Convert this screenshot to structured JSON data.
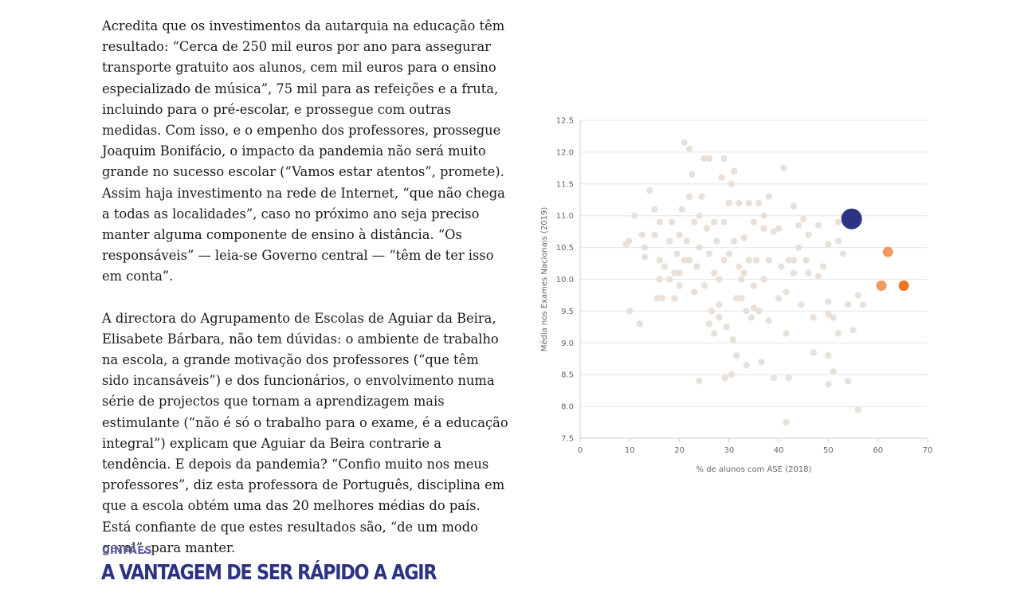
{
  "article": {
    "paragraphs": [
      "Acredita que os investimentos da autarquia na educação têm resultado: “Cerca de 250 mil euros por ano para assegurar transporte gratuito aos alunos, cem mil euros para o ensino especializado de música”, 75 mil para as refeições e a fruta, incluindo para o pré-escolar, e prossegue com outras medidas. Com isso, e o empenho dos professores, prossegue Joaquim Bonifácio, o impacto da pandemia não será muito grande no sucesso escolar (“Vamos estar atentos”, promete). Assim haja investimento na rede de Internet, “que não chega a todas as localidades”, caso no próximo ano seja preciso manter alguma componente de ensino à distância. “Os responsáveis” — leia-se Governo central — “têm de ter isso em conta”.",
      "A directora do Agrupamento de Escolas de Aguiar da Beira, Elisabete Bárbara, não tem dúvidas: o ambiente de trabalho na escola, a grande motivação dos professores (“que têm sido incansáveis”) e dos funcionários, o envolvimento numa série de projectos que tornam a aprendizagem mais estimulante (“não é só o trabalho para o exame, é a educação integral”) explicam que Aguiar da Beira contrarie a tendência. E depois da pandemia? “Confio muito nos meus professores”, diz esta professora de Português, disciplina em que a escola obtém uma das 20 melhores médias do país. Está confiante de que estes resultados são, “de um modo geral”, para manter."
    ]
  },
  "section": {
    "kicker": "CINFÃES",
    "headline": "A VANTAGEM DE SER RÁPIDO A AGIR"
  },
  "colors": {
    "background_points": "#e9e1d9",
    "highlight_large": "#2c3382",
    "highlight_light_orange": "#ef9a5c",
    "highlight_orange": "#e87722",
    "grid": "#e6e6e6",
    "axis_text": "#666666",
    "headline": "#2c3382",
    "kicker": "#5c5fa8"
  },
  "chart_data": {
    "type": "scatter",
    "xlabel": "% de alunos com ASE (2018)",
    "ylabel": "Média nos Exames Nacionais (2019)",
    "xlim": [
      0,
      70
    ],
    "ylim": [
      7.5,
      12.5
    ],
    "xticks": [
      "0",
      "10",
      "20",
      "30",
      "40",
      "50",
      "60",
      "70"
    ],
    "yticks": [
      "7.5",
      "8.0",
      "8.5",
      "9.0",
      "9.5",
      "10.0",
      "10.5",
      "11.0",
      "11.5",
      "12.0",
      "12.5"
    ],
    "grid": true,
    "series": [
      {
        "points": [
          [
            9.2,
            10.55
          ],
          [
            9.8,
            10.6
          ],
          [
            10,
            9.5
          ],
          [
            12,
            9.3
          ],
          [
            13,
            10.5
          ],
          [
            14,
            11.4
          ],
          [
            15,
            10.7
          ],
          [
            15.5,
            9.7
          ],
          [
            16,
            10.0
          ],
          [
            16,
            10.3
          ],
          [
            16.5,
            9.7
          ],
          [
            16,
            10.9
          ],
          [
            17,
            10.2
          ],
          [
            18,
            10.0
          ],
          [
            18,
            10.6
          ],
          [
            18.5,
            10.9
          ],
          [
            19,
            9.7
          ],
          [
            19,
            10.1
          ],
          [
            19.5,
            10.4
          ],
          [
            20,
            9.9
          ],
          [
            20,
            10.1
          ],
          [
            20,
            10.7
          ],
          [
            20.5,
            11.1
          ],
          [
            21,
            12.15
          ],
          [
            21,
            10.3
          ],
          [
            21.5,
            10.6
          ],
          [
            22,
            10.3
          ],
          [
            22,
            12.05
          ],
          [
            22,
            11.3
          ],
          [
            22.5,
            11.65
          ],
          [
            23,
            10.9
          ],
          [
            23,
            9.8
          ],
          [
            23.5,
            10.2
          ],
          [
            24,
            11.0
          ],
          [
            24,
            10.5
          ],
          [
            24.5,
            11.3
          ],
          [
            25,
            9.9
          ],
          [
            25,
            11.9
          ],
          [
            25.5,
            10.8
          ],
          [
            26,
            9.3
          ],
          [
            26,
            11.9
          ],
          [
            26,
            10.4
          ],
          [
            26.5,
            9.5
          ],
          [
            27,
            10.1
          ],
          [
            27,
            9.15
          ],
          [
            27,
            10.9
          ],
          [
            27.5,
            10.6
          ],
          [
            28,
            9.6
          ],
          [
            28,
            10.0
          ],
          [
            28,
            9.4
          ],
          [
            28.5,
            11.6
          ],
          [
            29,
            11.9
          ],
          [
            29,
            10.3
          ],
          [
            29,
            10.9
          ],
          [
            29.5,
            9.25
          ],
          [
            30,
            10.4
          ],
          [
            30,
            11.2
          ],
          [
            30.5,
            11.5
          ],
          [
            30.5,
            8.5
          ],
          [
            31,
            11.7
          ],
          [
            31,
            10.6
          ],
          [
            31.5,
            9.7
          ],
          [
            31.5,
            8.8
          ],
          [
            32,
            10.2
          ],
          [
            32,
            11.2
          ],
          [
            32.5,
            10.0
          ],
          [
            32.5,
            9.7
          ],
          [
            33,
            10.65
          ],
          [
            33,
            10.1
          ],
          [
            33.5,
            9.5
          ],
          [
            33.5,
            8.65
          ],
          [
            34,
            11.2
          ],
          [
            34,
            10.3
          ],
          [
            34.5,
            9.4
          ],
          [
            35,
            10.9
          ],
          [
            35,
            9.9
          ],
          [
            35,
            9.55
          ],
          [
            35.5,
            10.3
          ],
          [
            36,
            11.2
          ],
          [
            36,
            9.5
          ],
          [
            36.5,
            8.7
          ],
          [
            37,
            10.8
          ],
          [
            37,
            10.0
          ],
          [
            37,
            11.0
          ],
          [
            38,
            11.3
          ],
          [
            38,
            10.3
          ],
          [
            38,
            9.35
          ],
          [
            39,
            10.75
          ],
          [
            39,
            8.45
          ],
          [
            40,
            9.7
          ],
          [
            40,
            10.8
          ],
          [
            40.5,
            10.2
          ],
          [
            41,
            11.75
          ],
          [
            41.5,
            9.8
          ],
          [
            41.5,
            9.15
          ],
          [
            42,
            10.3
          ],
          [
            42,
            8.45
          ],
          [
            43,
            10.1
          ],
          [
            43,
            10.3
          ],
          [
            43,
            11.15
          ],
          [
            44,
            10.5
          ],
          [
            44,
            10.85
          ],
          [
            44.5,
            9.6
          ],
          [
            45,
            10.95
          ],
          [
            45.5,
            10.3
          ],
          [
            46,
            10.1
          ],
          [
            46,
            10.7
          ],
          [
            47,
            8.85
          ],
          [
            47,
            9.4
          ],
          [
            48,
            10.05
          ],
          [
            48,
            10.85
          ],
          [
            49,
            10.2
          ],
          [
            50,
            9.65
          ],
          [
            50,
            9.45
          ],
          [
            50,
            8.35
          ],
          [
            50,
            8.8
          ],
          [
            50,
            10.55
          ],
          [
            51,
            8.55
          ],
          [
            51,
            9.4
          ],
          [
            52,
            9.15
          ],
          [
            52,
            10.6
          ],
          [
            52,
            10.9
          ],
          [
            53,
            10.4
          ],
          [
            53,
            11.0
          ],
          [
            54,
            8.4
          ],
          [
            54,
            9.6
          ],
          [
            55,
            9.2
          ],
          [
            56,
            9.75
          ],
          [
            56,
            7.95
          ],
          [
            57,
            9.6
          ],
          [
            41.5,
            7.75
          ],
          [
            30.8,
            9.05
          ],
          [
            29.2,
            8.45
          ],
          [
            24,
            8.4
          ],
          [
            13,
            10.35
          ],
          [
            12.5,
            10.7
          ],
          [
            11,
            11.0
          ],
          [
            15,
            11.1
          ]
        ]
      },
      {
        "points": [
          [
            54.7,
            10.95
          ]
        ],
        "size": "large"
      },
      {
        "points": [
          [
            62,
            10.43
          ],
          [
            60.7,
            9.9
          ]
        ]
      },
      {
        "points": [
          [
            65.2,
            9.9
          ]
        ]
      }
    ]
  }
}
